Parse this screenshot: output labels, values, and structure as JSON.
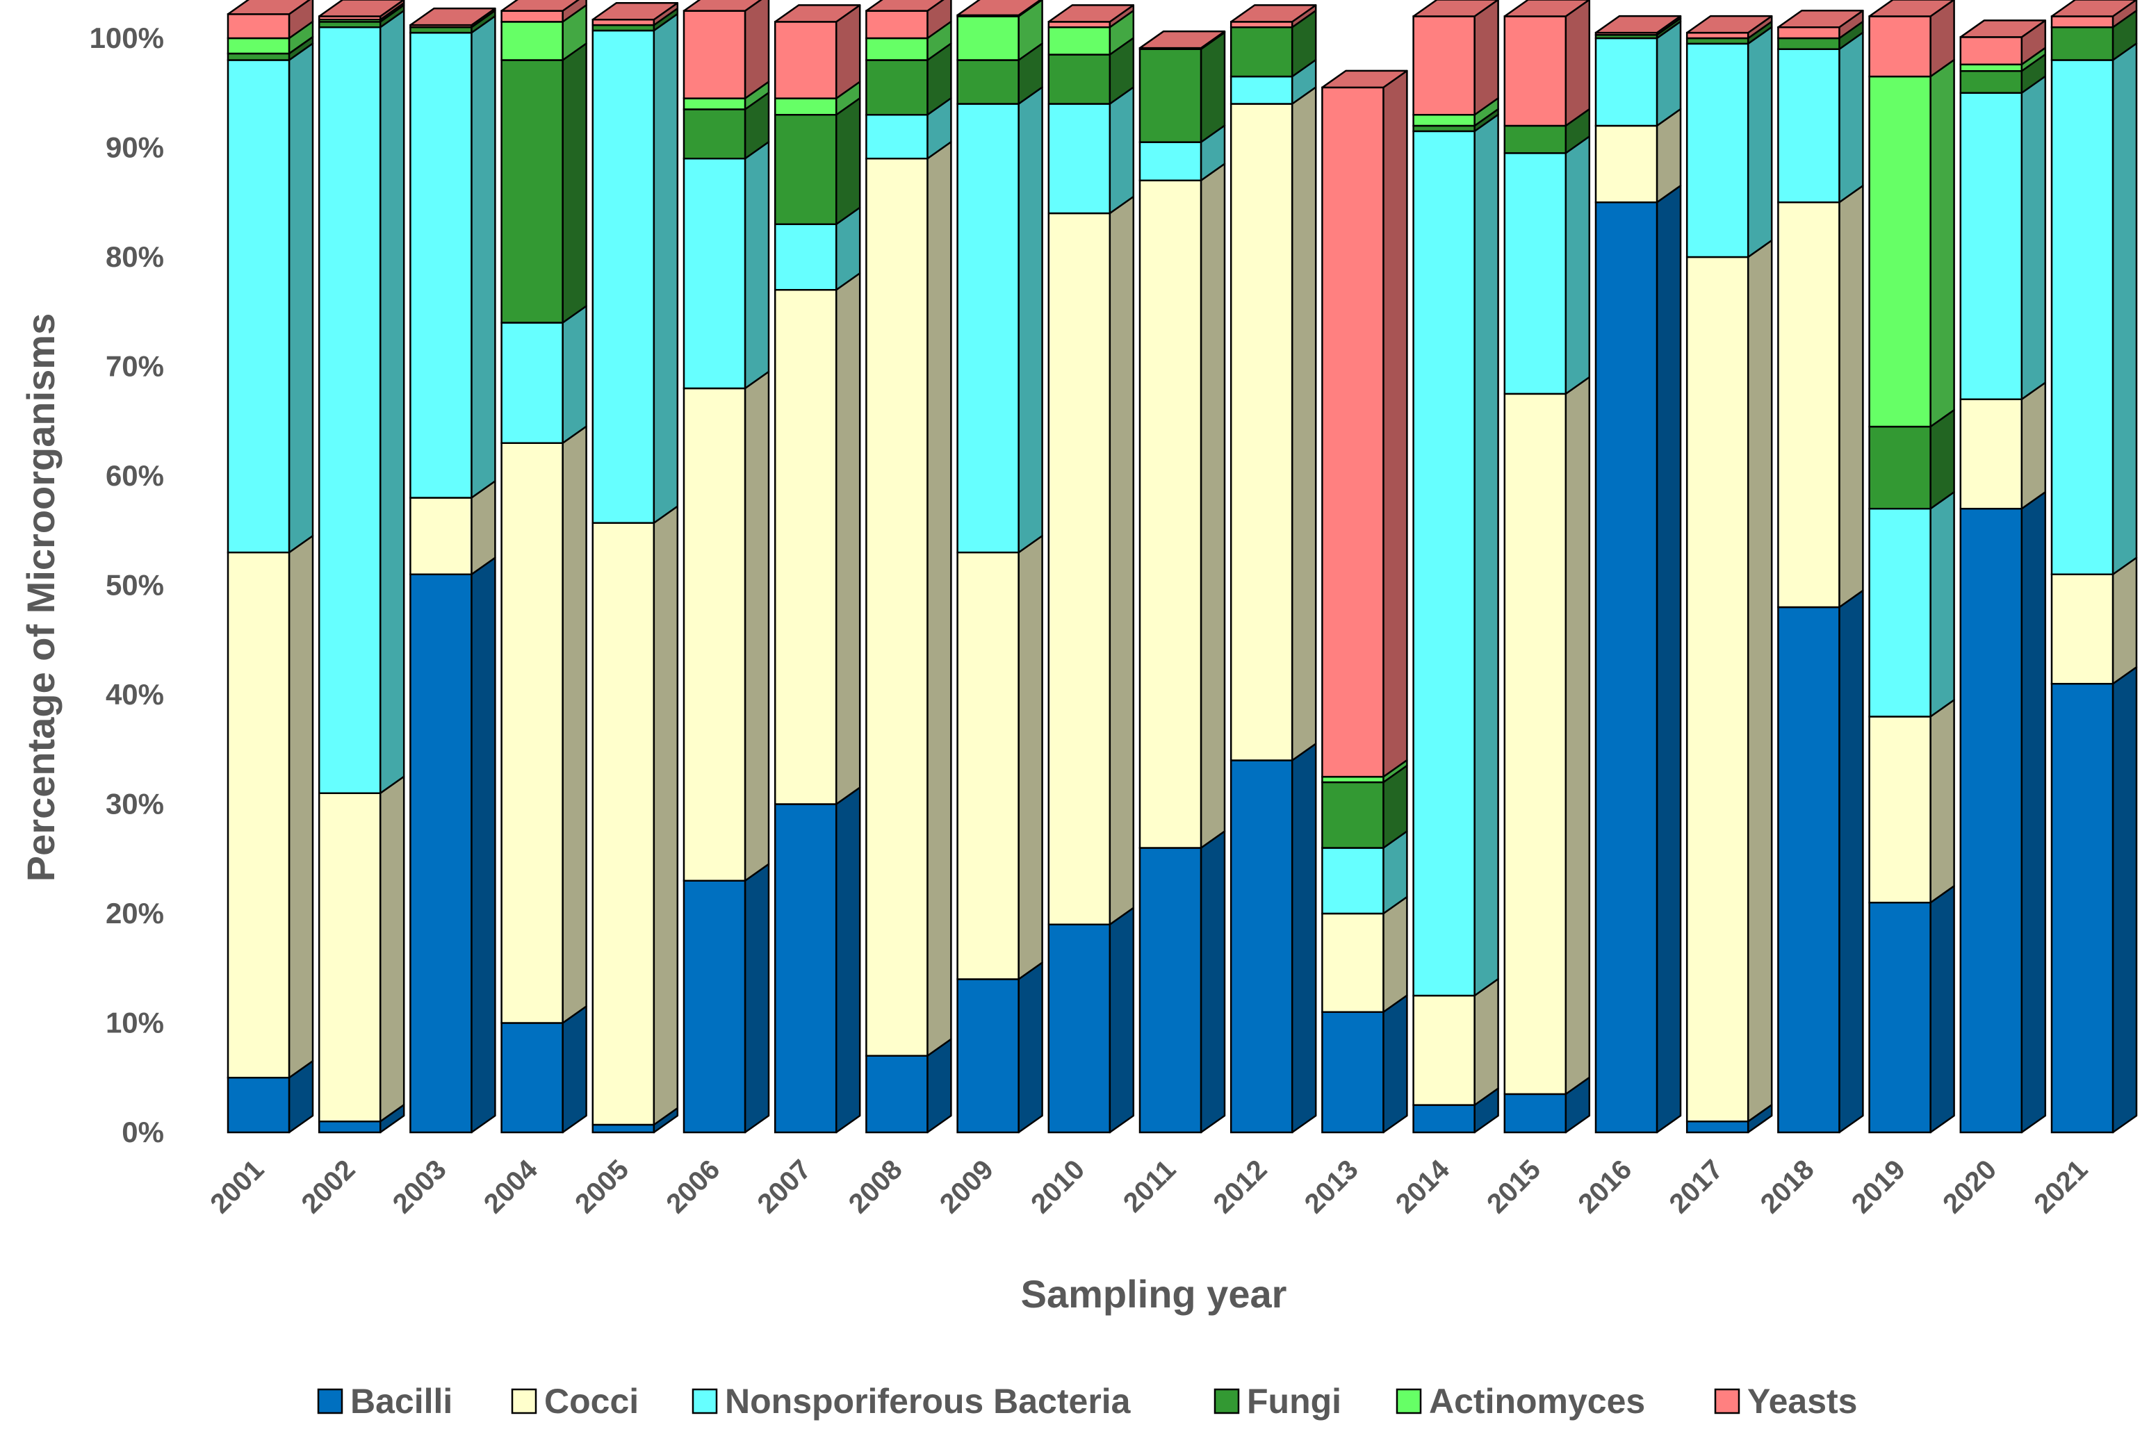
{
  "chart_data": {
    "type": "bar",
    "stacked": true,
    "ylabel": "Percentage of Microorganisms",
    "xlabel": "Sampling year",
    "ylim": [
      0,
      100
    ],
    "ytick_values": [
      0,
      10,
      20,
      30,
      40,
      50,
      60,
      70,
      80,
      90,
      100
    ],
    "ytick_labels": [
      "0%",
      "10%",
      "20%",
      "30%",
      "40%",
      "50%",
      "60%",
      "70%",
      "80%",
      "90%",
      "100%"
    ],
    "legend_position": "bottom",
    "categories": [
      "2001",
      "2002",
      "2003",
      "2004",
      "2005",
      "2006",
      "2007",
      "2008",
      "2009",
      "2010",
      "2011",
      "2012",
      "2013",
      "2014",
      "2015",
      "2016",
      "2017",
      "2018",
      "2019",
      "2020",
      "2021"
    ],
    "series": [
      {
        "name": "Bacilli",
        "color": "#0070C0",
        "values": [
          5,
          1,
          51,
          10,
          0.7,
          23,
          30,
          7,
          14,
          19,
          26,
          34,
          11,
          2.5,
          3.5,
          85,
          1,
          48,
          21,
          57,
          41
        ]
      },
      {
        "name": "Cocci",
        "color": "#FFFFCC",
        "values": [
          48,
          30,
          7,
          53,
          55,
          45,
          47,
          82,
          39,
          65,
          61,
          60,
          9,
          10,
          64,
          7,
          79,
          37,
          17,
          10,
          10
        ]
      },
      {
        "name": "Nonsporiferous Bacteria",
        "color": "#66FFFF",
        "values": [
          45,
          70,
          42.5,
          11,
          45,
          21,
          6,
          4,
          41,
          10,
          3.5,
          2.5,
          6,
          79,
          22,
          8,
          19.5,
          14,
          19,
          28,
          47
        ]
      },
      {
        "name": "Fungi",
        "color": "#339933",
        "values": [
          0.6,
          0.5,
          0.5,
          24,
          0.5,
          4.5,
          10,
          5,
          4,
          4.5,
          8.5,
          4.5,
          6,
          0.5,
          2.5,
          0.3,
          0.5,
          1,
          7.5,
          2,
          3
        ]
      },
      {
        "name": "Actinomyces",
        "color": "#66FF66",
        "values": [
          1.4,
          0.2,
          0,
          3.5,
          0,
          1,
          1.5,
          2,
          4,
          2.5,
          0,
          0,
          0.5,
          1,
          0,
          0,
          0,
          0,
          32,
          0.6,
          0
        ]
      },
      {
        "name": "Yeasts",
        "color": "#FF8080",
        "values": [
          2.2,
          0.3,
          0.2,
          1,
          0.5,
          8,
          7,
          2.5,
          0.1,
          0.5,
          0.1,
          0.5,
          63,
          9,
          10,
          0.2,
          0.5,
          1,
          5.5,
          2.5,
          1
        ]
      }
    ]
  }
}
